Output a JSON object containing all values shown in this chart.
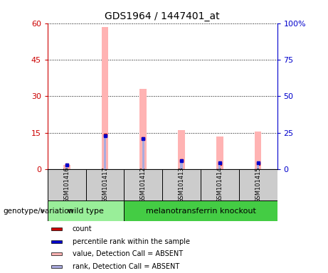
{
  "title": "GDS1964 / 1447401_at",
  "samples": [
    "GSM101416",
    "GSM101417",
    "GSM101412",
    "GSM101413",
    "GSM101414",
    "GSM101415"
  ],
  "pink_bars": [
    1.8,
    58.5,
    33.0,
    16.0,
    13.5,
    15.5
  ],
  "blue_bars_right": [
    3.0,
    23.0,
    21.0,
    6.0,
    4.5,
    4.5
  ],
  "red_marker_vals": [
    1.8,
    14.0,
    12.5,
    3.5,
    2.5,
    2.5
  ],
  "blue_marker_vals_right": [
    3.0,
    23.0,
    21.0,
    6.0,
    4.5,
    4.5
  ],
  "ylim_left": [
    0,
    60
  ],
  "ylim_right": [
    0,
    100
  ],
  "yticks_left": [
    0,
    15,
    30,
    45,
    60
  ],
  "yticks_right": [
    0,
    25,
    50,
    75,
    100
  ],
  "ytick_labels_left": [
    "0",
    "15",
    "30",
    "45",
    "60"
  ],
  "ytick_labels_right": [
    "0",
    "25",
    "50",
    "75",
    "100%"
  ],
  "left_axis_color": "#cc0000",
  "right_axis_color": "#0000cc",
  "pink_color": "#ffb3b3",
  "blue_color": "#aaaadd",
  "red_dot_color": "#cc0000",
  "blue_dot_color": "#0000cc",
  "bg_plot": "#ffffff",
  "bg_sample_box": "#cccccc",
  "bg_wildtype": "#99ee99",
  "bg_knockout": "#44cc44",
  "group_label": "genotype/variation",
  "wildtype_label": "wild type",
  "knockout_label": "melanotransferrin knockout",
  "legend_items": [
    {
      "label": "count",
      "color": "#cc0000"
    },
    {
      "label": "percentile rank within the sample",
      "color": "#0000cc"
    },
    {
      "label": "value, Detection Call = ABSENT",
      "color": "#ffb3b3"
    },
    {
      "label": "rank, Detection Call = ABSENT",
      "color": "#aaaadd"
    }
  ],
  "pink_bar_width": 0.18,
  "blue_bar_width": 0.06
}
